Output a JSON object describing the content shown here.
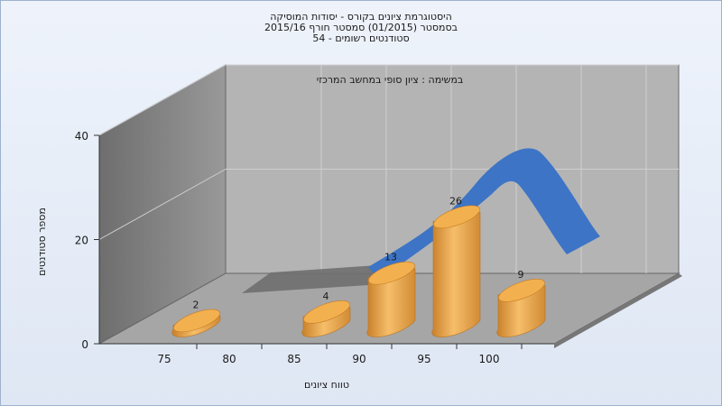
{
  "chart_data": {
    "type": "bar",
    "title_lines": [
      "היסטוגרמת ציונים בקורס - יסודות המוסיקה",
      "בסמסטר  (01/2015)  סמסטר חורף 2015/16",
      "סטודנטים רשומים - 54"
    ],
    "subtitle": "במשימה : ציון סופי במחשב המרכזי",
    "xlabel": "טווח ציונים",
    "ylabel": "מספר סטודנטים",
    "x_ticks": [
      "75",
      "80",
      "85",
      "90",
      "95",
      "100"
    ],
    "y_ticks": [
      "0",
      "20",
      "40"
    ],
    "ylim": [
      0,
      40
    ],
    "grid": true,
    "bars": [
      {
        "x": 75,
        "value": 2,
        "label": "2"
      },
      {
        "x": 85,
        "value": 4,
        "label": "4"
      },
      {
        "x": 90,
        "value": 13,
        "label": "13"
      },
      {
        "x": 95,
        "value": 26,
        "label": "26"
      },
      {
        "x": 100,
        "value": 9,
        "label": "9"
      }
    ],
    "colors": {
      "bar": "#f0a94a",
      "curve": "#3d74c6",
      "back_wall": "#b4b4b4",
      "side_wall": "#8a8a8a",
      "floor": "#a6a6a6"
    }
  }
}
